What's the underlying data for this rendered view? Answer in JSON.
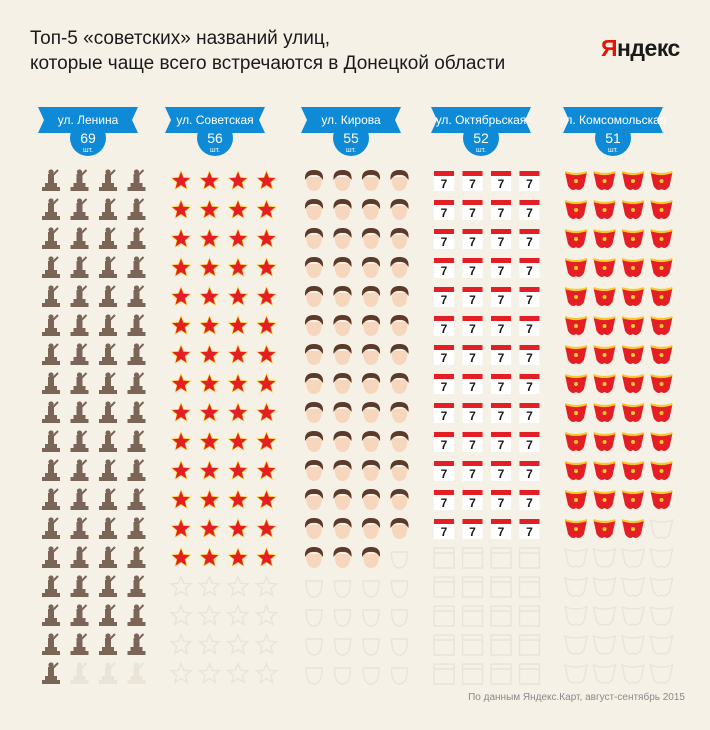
{
  "title_line1": "Топ-5 «советских» названий улиц,",
  "title_line2": "которые чаще всего встречаются в Донецкой области",
  "brand": {
    "first": "Я",
    "rest": "ндекс",
    "first_color": "#e61400",
    "rest_color": "#1a1a1a"
  },
  "footnote": "По данным Яндекс.Карт, август-сентябрь 2015",
  "unit_label": "шт.",
  "colors": {
    "background": "#f6f1e7",
    "label_blue": "#0f8ad6",
    "monument": "#7a6557",
    "star_red": "#e31e24",
    "star_outline": "#fbd22c",
    "face_skin": "#f6d6bc",
    "face_hair": "#5b3a2a",
    "calendar_red": "#e31e24",
    "banner_red": "#e31e24",
    "banner_gold": "#f7c92a",
    "ghost": "#e9e3d8"
  },
  "chart_data": {
    "type": "pictogram",
    "title": "Топ-5 «советских» названий улиц, которые чаще всего встречаются в Донецкой области",
    "capacity_per_column": 72,
    "categories": [
      "ул. Ленина",
      "ул. Советская",
      "ул. Кирова",
      "ул. Октябрьская",
      "ул. Комсомольская"
    ],
    "values": [
      69,
      56,
      55,
      52,
      51
    ],
    "icons": [
      "monument-icon",
      "star-icon",
      "face-icon",
      "calendar-icon",
      "banner-icon"
    ],
    "calendar_digit": "7"
  }
}
